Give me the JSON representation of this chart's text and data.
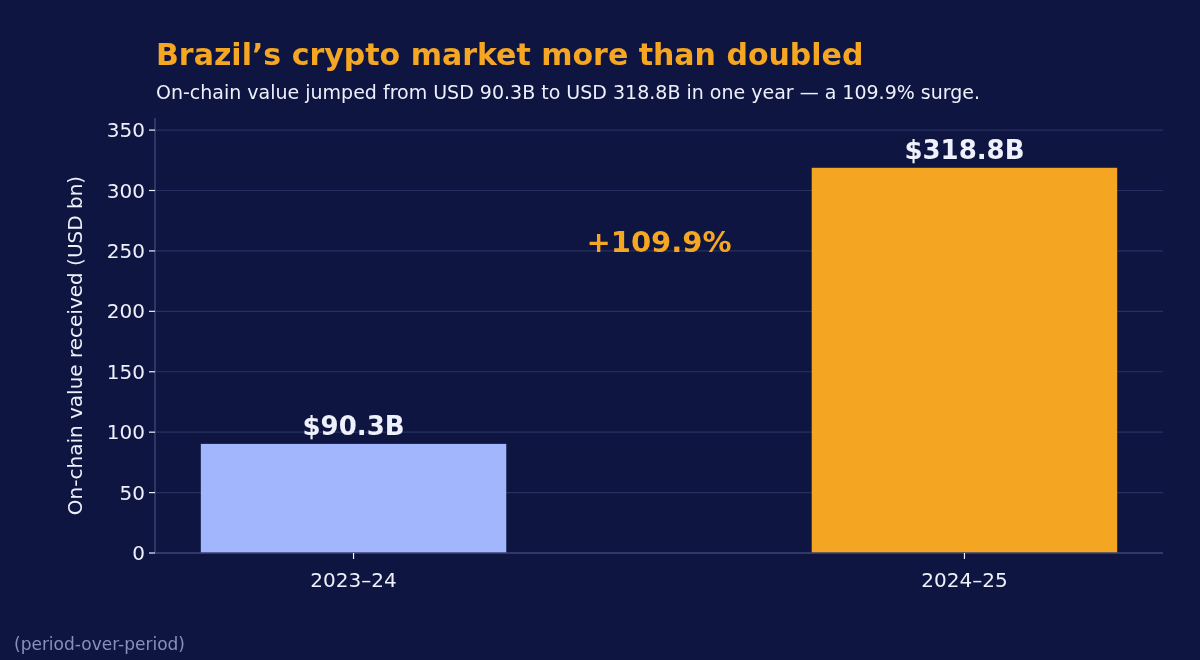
{
  "chart_data": {
    "type": "bar",
    "title": "Brazil’s crypto market more than doubled",
    "subtitle": "On-chain value jumped from USD 90.3B to USD 318.8B in one year — a 109.9% surge.",
    "ylabel": "On-chain value received (USD bn)",
    "categories": [
      "2023–24",
      "2024–25"
    ],
    "values": [
      90.3,
      318.8
    ],
    "colors": [
      "#a2b6fe",
      "#f4a623"
    ],
    "value_labels": [
      "$90.3B",
      "$318.8B"
    ],
    "ylim": [
      0,
      360
    ],
    "yticks": [
      0,
      50,
      100,
      150,
      200,
      250,
      300,
      350
    ],
    "grid": "y",
    "annotations": [
      "+109.9%",
      "(period-over-period)"
    ]
  }
}
